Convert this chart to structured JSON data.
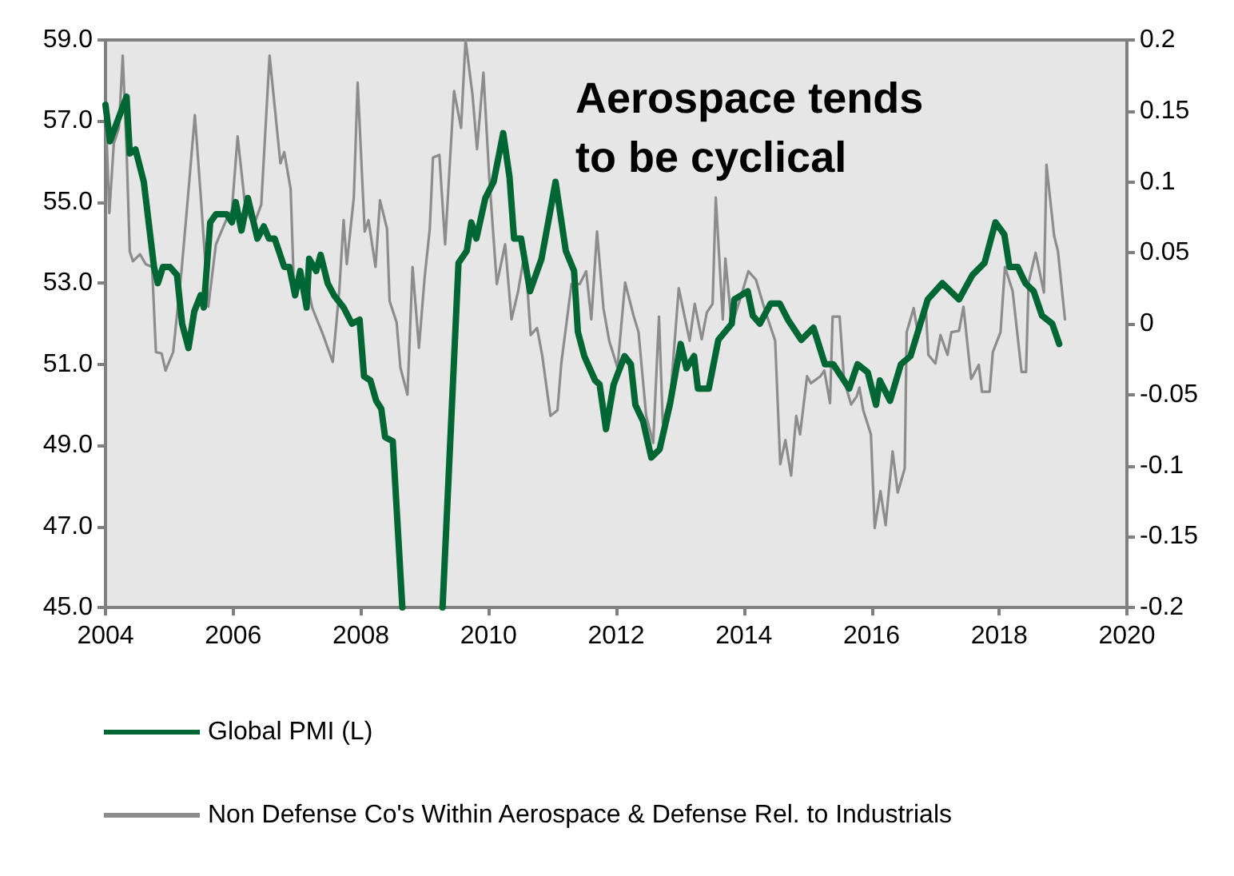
{
  "chart_data": {
    "type": "line",
    "title": "Aerospace tends to be cyclical",
    "xlim": [
      2004,
      2020
    ],
    "xticks": [
      2004,
      2006,
      2008,
      2010,
      2012,
      2014,
      2016,
      2018,
      2020
    ],
    "ylim": [
      45,
      59
    ],
    "yticks": [
      {
        "value": 45,
        "label": "45.0"
      },
      {
        "value": 47,
        "label": "47.0"
      },
      {
        "value": 49,
        "label": "49.0"
      },
      {
        "value": 51,
        "label": "51.0"
      },
      {
        "value": 53,
        "label": "53.0"
      },
      {
        "value": 55,
        "label": "55.0"
      },
      {
        "value": 57,
        "label": "57.0"
      },
      {
        "value": 59,
        "label": "59.0"
      }
    ],
    "y2lim": [
      -0.2,
      0.2
    ],
    "y2ticks": [
      -0.2,
      -0.15,
      -0.1,
      -0.05,
      0,
      0.05,
      0.1,
      0.15,
      0.2
    ],
    "grid": false,
    "legend": "bottom",
    "marker": "none",
    "line_style": "solid",
    "series": [
      {
        "name": "Global PMI (L)",
        "color": "#006633",
        "x": [
          2004.0,
          2004.07,
          2004.14,
          2004.33,
          2004.38,
          2004.47,
          2004.6,
          2004.76,
          2004.82,
          2004.9,
          2005.01,
          2005.12,
          2005.2,
          2005.3,
          2005.39,
          2005.49,
          2005.54,
          2005.64,
          2005.73,
          2005.9,
          2005.98,
          2006.04,
          2006.13,
          2006.23,
          2006.38,
          2006.48,
          2006.56,
          2006.65,
          2006.8,
          2006.88,
          2006.97,
          2007.05,
          2007.15,
          2007.19,
          2007.3,
          2007.37,
          2007.48,
          2007.58,
          2007.73,
          2007.86,
          2007.98,
          2008.05,
          2008.15,
          2008.24,
          2008.32,
          2008.38,
          2008.5,
          2008.65,
          2008.9,
          2009.28,
          2009.53,
          2009.66,
          2009.73,
          2009.81,
          2009.95,
          2010.08,
          2010.23,
          2010.33,
          2010.4,
          2010.51,
          2010.65,
          2010.83,
          2011.05,
          2011.21,
          2011.34,
          2011.4,
          2011.5,
          2011.67,
          2011.74,
          2011.84,
          2011.96,
          2012.13,
          2012.23,
          2012.3,
          2012.42,
          2012.55,
          2012.68,
          2012.84,
          2013.01,
          2013.1,
          2013.22,
          2013.28,
          2013.45,
          2013.6,
          2013.81,
          2013.85,
          2014.06,
          2014.14,
          2014.25,
          2014.42,
          2014.56,
          2014.69,
          2014.9,
          2015.09,
          2015.27,
          2015.4,
          2015.65,
          2015.78,
          2015.94,
          2016.07,
          2016.13,
          2016.29,
          2016.46,
          2016.61,
          2016.88,
          2017.11,
          2017.37,
          2017.58,
          2017.77,
          2017.94,
          2018.08,
          2018.16,
          2018.29,
          2018.41,
          2018.54,
          2018.67,
          2018.83,
          2018.94
        ],
        "values": [
          57.4,
          56.5,
          56.8,
          57.6,
          56.2,
          56.3,
          55.5,
          53.4,
          53.0,
          53.4,
          53.4,
          53.2,
          52.0,
          51.4,
          52.3,
          52.7,
          52.4,
          54.5,
          54.7,
          54.7,
          54.5,
          55.0,
          54.3,
          55.1,
          54.1,
          54.4,
          54.1,
          54.1,
          53.4,
          53.4,
          52.7,
          53.3,
          52.4,
          53.6,
          53.3,
          53.7,
          53.0,
          52.7,
          52.4,
          52.0,
          52.1,
          50.7,
          50.6,
          50.1,
          49.9,
          49.2,
          49.1,
          45.0,
          null,
          45.0,
          53.5,
          53.8,
          54.5,
          54.1,
          55.1,
          55.5,
          56.7,
          55.6,
          54.1,
          54.1,
          52.8,
          53.6,
          55.5,
          53.8,
          53.3,
          51.8,
          51.2,
          50.6,
          50.5,
          49.4,
          50.5,
          51.2,
          51.0,
          50.0,
          49.6,
          48.7,
          48.9,
          50.0,
          51.5,
          50.9,
          51.2,
          50.4,
          50.4,
          51.6,
          52.0,
          52.6,
          52.8,
          52.2,
          52.0,
          52.5,
          52.5,
          52.1,
          51.6,
          51.9,
          51.0,
          51.0,
          50.4,
          51.0,
          50.8,
          50.0,
          50.6,
          50.1,
          51.0,
          51.2,
          52.6,
          53.0,
          52.6,
          53.2,
          53.5,
          54.5,
          54.2,
          53.4,
          53.4,
          53.0,
          52.8,
          52.2,
          52.0,
          51.5
        ]
      },
      {
        "name": "Non Defense Co's Within Aerospace & Defense Rel. to Industrials",
        "color": "#8c8c8c",
        "axis": "y2",
        "x": [
          2004.0,
          2004.06,
          2004.13,
          2004.21,
          2004.27,
          2004.33,
          2004.38,
          2004.43,
          2004.54,
          2004.63,
          2004.73,
          2004.79,
          2004.88,
          2004.94,
          2005.06,
          2005.19,
          2005.27,
          2005.4,
          2005.5,
          2005.61,
          2005.73,
          2005.9,
          2005.98,
          2006.07,
          2006.19,
          2006.32,
          2006.44,
          2006.57,
          2006.74,
          2006.8,
          2006.9,
          2006.95,
          2007.07,
          2007.16,
          2007.24,
          2007.41,
          2007.56,
          2007.66,
          2007.73,
          2007.78,
          2007.89,
          2007.95,
          2008.06,
          2008.12,
          2008.23,
          2008.3,
          2008.41,
          2008.45,
          2008.56,
          2008.62,
          2008.73,
          2008.81,
          2008.91,
          2009.0,
          2009.08,
          2009.13,
          2009.23,
          2009.32,
          2009.46,
          2009.57,
          2009.64,
          2009.75,
          2009.82,
          2009.92,
          2010.01,
          2010.13,
          2010.26,
          2010.36,
          2010.46,
          2010.57,
          2010.66,
          2010.76,
          2010.84,
          2010.97,
          2011.08,
          2011.14,
          2011.3,
          2011.43,
          2011.53,
          2011.61,
          2011.7,
          2011.8,
          2011.89,
          2012.02,
          2012.14,
          2012.27,
          2012.35,
          2012.47,
          2012.58,
          2012.67,
          2012.73,
          2012.85,
          2012.98,
          2013.15,
          2013.23,
          2013.34,
          2013.42,
          2013.51,
          2013.56,
          2013.67,
          2013.71,
          2013.81,
          2013.94,
          2014.07,
          2014.19,
          2014.32,
          2014.49,
          2014.57,
          2014.65,
          2014.74,
          2014.82,
          2014.88,
          2014.99,
          2015.05,
          2015.2,
          2015.26,
          2015.35,
          2015.39,
          2015.5,
          2015.57,
          2015.68,
          2015.77,
          2015.81,
          2015.87,
          2015.99,
          2016.05,
          2016.14,
          2016.22,
          2016.33,
          2016.41,
          2016.52,
          2016.55,
          2016.66,
          2016.73,
          2016.85,
          2016.89,
          2017.0,
          2017.08,
          2017.19,
          2017.25,
          2017.37,
          2017.44,
          2017.56,
          2017.68,
          2017.73,
          2017.85,
          2017.9,
          2018.02,
          2018.09,
          2018.21,
          2018.35,
          2018.42,
          2018.46,
          2018.57,
          2018.7,
          2018.74,
          2018.86,
          2018.92,
          2019.03
        ],
        "values": [
          0.153,
          0.078,
          0.127,
          0.138,
          0.189,
          0.123,
          0.051,
          0.044,
          0.049,
          0.042,
          0.04,
          -0.02,
          -0.021,
          -0.033,
          -0.02,
          0.037,
          0.078,
          0.147,
          0.085,
          0.012,
          0.056,
          0.074,
          0.08,
          0.132,
          0.082,
          0.069,
          0.084,
          0.189,
          0.113,
          0.121,
          0.095,
          0.028,
          0.028,
          0.028,
          0.011,
          -0.008,
          -0.027,
          0.022,
          0.073,
          0.042,
          0.089,
          0.17,
          0.065,
          0.073,
          0.04,
          0.087,
          0.067,
          0.016,
          0.001,
          -0.031,
          -0.05,
          0.04,
          -0.017,
          0.033,
          0.067,
          0.117,
          0.119,
          0.056,
          0.164,
          0.138,
          0.2,
          0.161,
          0.123,
          0.177,
          0.104,
          0.028,
          0.056,
          0.003,
          0.022,
          0.051,
          -0.008,
          -0.003,
          -0.022,
          -0.065,
          -0.061,
          -0.028,
          0.028,
          0.028,
          0.037,
          0.003,
          0.065,
          0.011,
          -0.012,
          -0.031,
          0.029,
          0.006,
          -0.006,
          -0.065,
          -0.084,
          0.005,
          -0.07,
          -0.051,
          0.025,
          -0.012,
          0.014,
          -0.011,
          0.008,
          0.014,
          0.089,
          0.003,
          0.046,
          -0.001,
          0.017,
          0.037,
          0.031,
          0.011,
          -0.012,
          -0.099,
          -0.082,
          -0.107,
          -0.065,
          -0.078,
          -0.037,
          -0.042,
          -0.037,
          -0.033,
          -0.056,
          0.005,
          0.005,
          -0.04,
          -0.057,
          -0.051,
          -0.045,
          -0.061,
          -0.078,
          -0.144,
          -0.118,
          -0.142,
          -0.09,
          -0.119,
          -0.102,
          -0.006,
          0.011,
          -0.008,
          0.011,
          -0.022,
          -0.028,
          -0.008,
          -0.022,
          -0.006,
          -0.005,
          0.012,
          -0.039,
          -0.029,
          -0.048,
          -0.048,
          -0.02,
          -0.006,
          0.04,
          0.023,
          -0.034,
          -0.034,
          0.029,
          0.05,
          0.022,
          0.112,
          0.062,
          0.051,
          0.003
        ]
      }
    ]
  }
}
